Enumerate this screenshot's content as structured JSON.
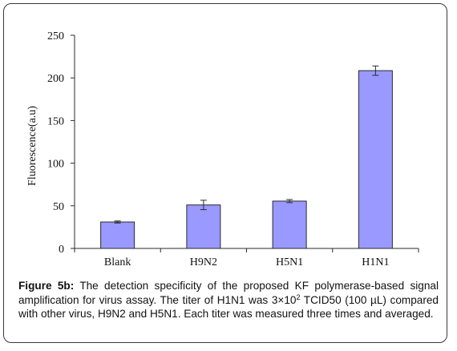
{
  "chart_data": {
    "type": "bar",
    "categories": [
      "Blank",
      "H9N2",
      "H5N1",
      "H1N1"
    ],
    "values": [
      31,
      51,
      55.5,
      208.5
    ],
    "errors": [
      1.2,
      5.5,
      1.8,
      5.5
    ],
    "ylabel": "Fluorescence(a.u)",
    "ylim": [
      0,
      250
    ],
    "yticks": [
      "0",
      "50",
      "100",
      "150",
      "200",
      "250"
    ],
    "grid": false,
    "colors": {
      "bar_fill": "#9999ff",
      "bar_stroke": "#2a2a2a",
      "axis": "#2a2a2a"
    }
  },
  "caption": {
    "label": "Figure 5b:",
    "text_before_sup": " The detection specificity of the proposed KF polymerase-based signal amplification for virus assay. The titer of H1N1 was 3×10",
    "sup": "2",
    "text_after_sup": " TCID50 (100 µL) compared with other virus, H9N2 and H5N1. Each titer was measured three times and averaged."
  }
}
